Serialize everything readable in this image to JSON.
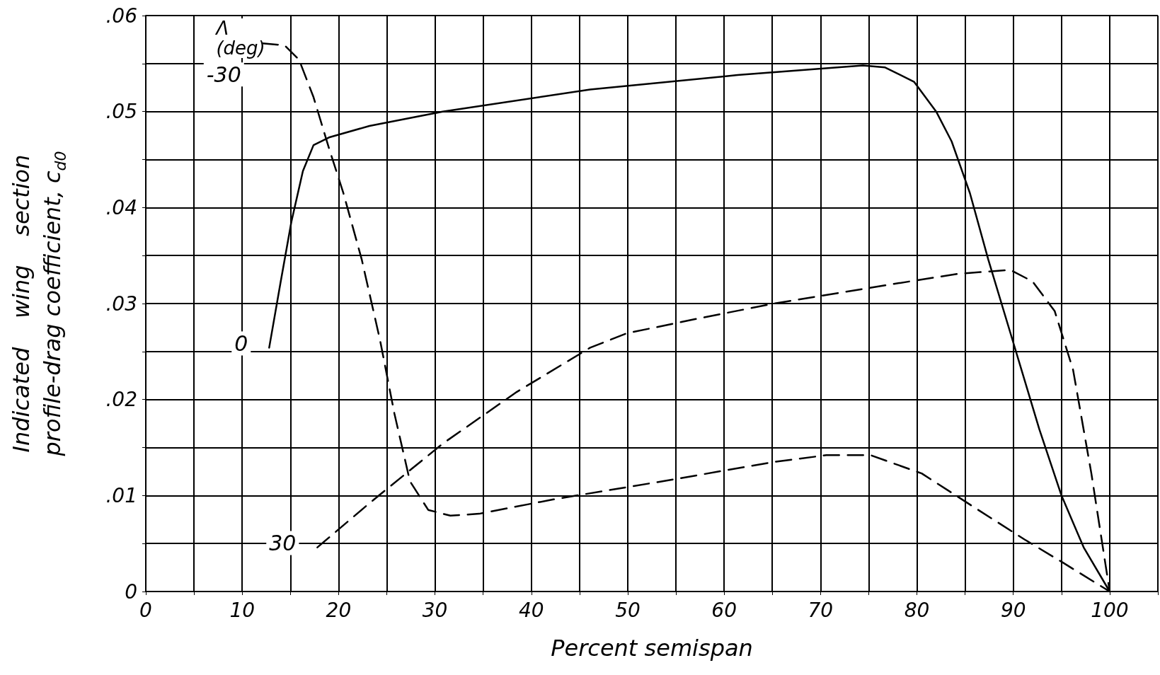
{
  "chart_data": {
    "type": "line",
    "xlabel": "Percent semispan",
    "ylabel": "Indicated    wing    section\nprofile-drag coefficient, c$_{d0}$",
    "legend_title": "Λ (deg)",
    "xlim": [
      0,
      105
    ],
    "xticks": [
      0,
      {
        "value": 5,
        "label": null
      },
      10,
      {
        "value": 15,
        "label": null
      },
      20,
      {
        "value": 25,
        "label": null
      },
      30,
      {
        "value": 35,
        "label": null
      },
      40,
      {
        "value": 45,
        "label": null
      },
      50,
      {
        "value": 55,
        "label": null
      },
      60,
      {
        "value": 65,
        "label": null
      },
      70,
      {
        "value": 75,
        "label": null
      },
      80,
      {
        "value": 85,
        "label": null
      },
      90,
      {
        "value": 95,
        "label": null
      },
      100,
      {
        "value": 105,
        "label": null
      }
    ],
    "ylim": [
      0,
      0.06
    ],
    "yticks": [
      0,
      {
        "value": 0.005,
        "label": null
      },
      {
        "value": 0.01,
        "label": ".01"
      },
      {
        "value": 0.015,
        "label": null
      },
      {
        "value": 0.02,
        "label": ".02"
      },
      {
        "value": 0.025,
        "label": null
      },
      {
        "value": 0.03,
        "label": ".03"
      },
      {
        "value": 0.035,
        "label": null
      },
      {
        "value": 0.04,
        "label": ".04"
      },
      {
        "value": 0.045,
        "label": null
      },
      {
        "value": 0.05,
        "label": ".05"
      },
      {
        "value": 0.055,
        "label": null
      },
      {
        "value": 0.06,
        "label": ".06"
      }
    ],
    "grid": true,
    "legend": false,
    "series": [
      {
        "name": "-30",
        "color": "#000000",
        "line_style": "dashed",
        "x": [
          12.1,
          14.4,
          15.9,
          17.4,
          19.0,
          20.5,
          22.4,
          24.3,
          25.8,
          27.4,
          29.3,
          31.6,
          34.6,
          42.3,
          53.7,
          65.2,
          70.6,
          75.2,
          80.5,
          85.9,
          91.2,
          95.0,
          100
        ],
        "values": [
          0.0571,
          0.0569,
          0.0554,
          0.0515,
          0.0462,
          0.0415,
          0.0346,
          0.0262,
          0.0185,
          0.0115,
          0.0085,
          0.0079,
          0.0081,
          0.0096,
          0.0115,
          0.0135,
          0.0142,
          0.0142,
          0.0123,
          0.0088,
          0.0054,
          0.0031,
          0
        ]
      },
      {
        "name": "0",
        "color": "#000000",
        "line_style": "solid",
        "x": [
          12.8,
          14.0,
          15.1,
          16.3,
          17.4,
          19.0,
          23.2,
          30.8,
          46.1,
          61.4,
          74.4,
          76.7,
          79.7,
          82.0,
          83.6,
          85.5,
          87.4,
          90.4,
          92.7,
          95.0,
          97.3,
          100
        ],
        "values": [
          0.0254,
          0.0323,
          0.0385,
          0.0438,
          0.0465,
          0.0473,
          0.0485,
          0.05,
          0.0523,
          0.0538,
          0.0548,
          0.0546,
          0.0531,
          0.05,
          0.0469,
          0.0415,
          0.0346,
          0.0246,
          0.0169,
          0.01,
          0.0046,
          0
        ]
      },
      {
        "name": "30",
        "color": "#000000",
        "line_style": "dashed",
        "x": [
          17.8,
          23.2,
          30.8,
          38.5,
          46.1,
          49.9,
          57.6,
          65.2,
          76.7,
          84.3,
          89.7,
          92.0,
          94.3,
          96.2,
          98.1,
          100
        ],
        "values": [
          0.0046,
          0.0092,
          0.0154,
          0.0208,
          0.0254,
          0.0269,
          0.0285,
          0.03,
          0.0319,
          0.0331,
          0.0335,
          0.0323,
          0.0292,
          0.0231,
          0.0123,
          0
        ]
      }
    ]
  }
}
